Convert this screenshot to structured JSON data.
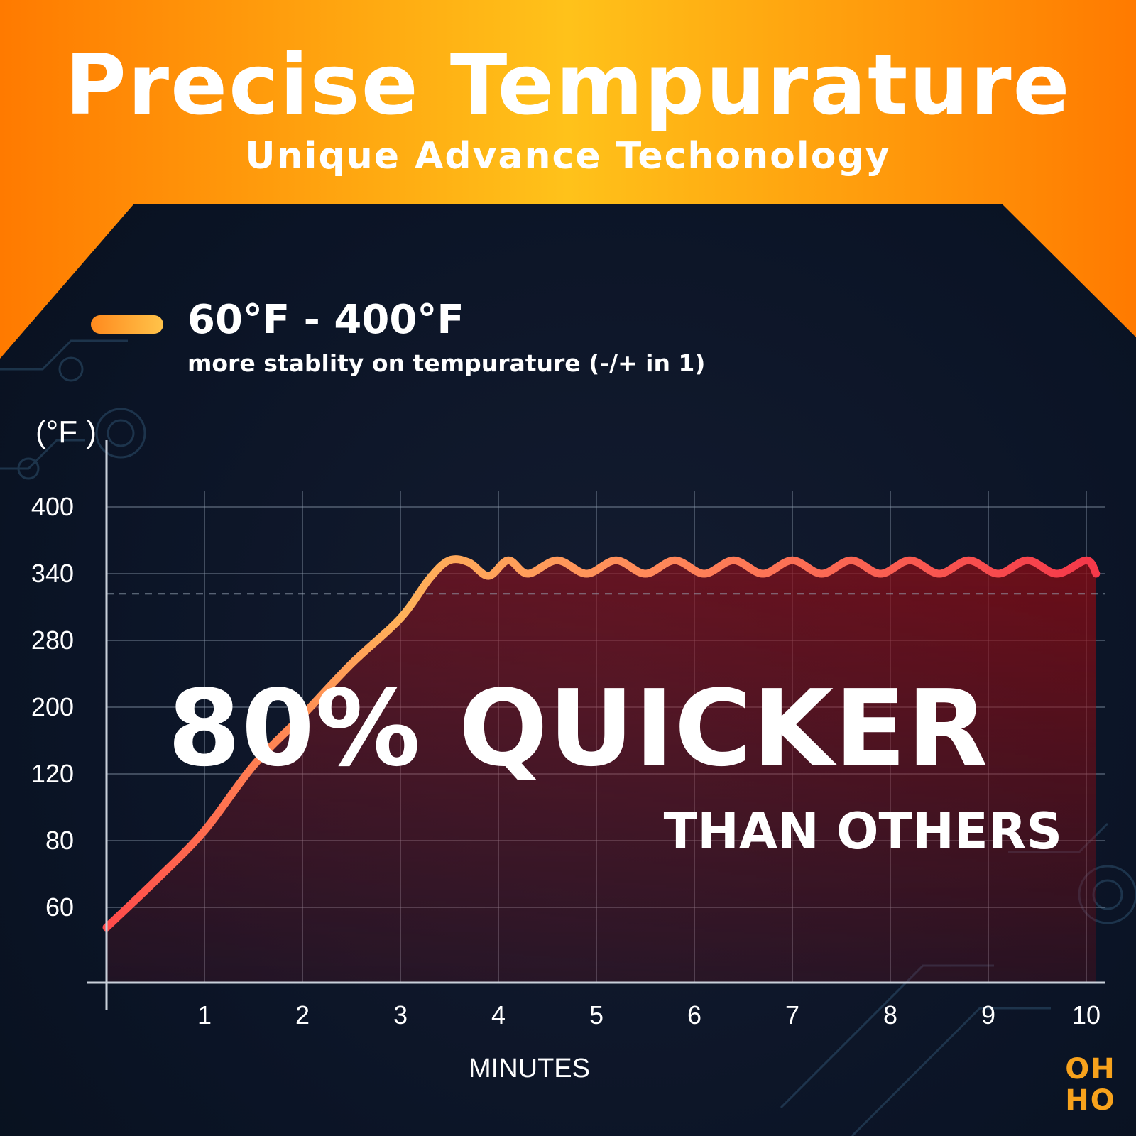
{
  "banner": {
    "title": "Precise Tempurature",
    "subtitle": "Unique Advance Techonology"
  },
  "legend": {
    "range_text": "60°F - 400°F",
    "note": "more stablity on tempurature (-/+ in 1)",
    "swatch_colors": [
      "#ff8a1e",
      "#ffc34a"
    ]
  },
  "headline": {
    "main": "80% QUICKER",
    "sub": "THAN OTHERS"
  },
  "brand": {
    "line1": "OH",
    "line2": "HO",
    "color": "#f7a21c"
  },
  "colors": {
    "banner_orange": "#ff7a00",
    "banner_gold": "#ffc21a",
    "background": "#0a1424",
    "curve_start": "#ff4a4a",
    "curve_mid": "#ffb15a",
    "curve_end": "#f5394a",
    "fill": "#8a0c14"
  },
  "chart_data": {
    "type": "line",
    "title": "",
    "xlabel": "MINUTES",
    "ylabel": "(°F )",
    "x_ticks": [
      "1",
      "2",
      "3",
      "4",
      "5",
      "6",
      "7",
      "8",
      "9",
      "10"
    ],
    "y_ticks": [
      "60",
      "80",
      "120",
      "200",
      "280",
      "340",
      "400"
    ],
    "y_tick_values": [
      60,
      80,
      120,
      200,
      280,
      340,
      400
    ],
    "xlim": [
      0,
      10.1
    ],
    "grid": true,
    "reference_line": 322,
    "series": [
      {
        "name": "",
        "x": [
          0,
          0.5,
          1,
          1.5,
          2,
          2.5,
          3,
          3.3,
          3.5,
          3.7,
          3.9,
          4.1,
          4.3,
          4.6,
          4.9,
          5.2,
          5.5,
          5.8,
          6.1,
          6.4,
          6.7,
          7.0,
          7.3,
          7.6,
          7.9,
          8.2,
          8.5,
          8.8,
          9.1,
          9.4,
          9.7,
          10.0,
          10.1
        ],
        "y": [
          54,
          68,
          86,
          130,
          190,
          252,
          300,
          336,
          352,
          350,
          338,
          352,
          340,
          352,
          340,
          352,
          340,
          352,
          340,
          352,
          340,
          352,
          340,
          352,
          340,
          352,
          340,
          352,
          340,
          352,
          340,
          352,
          340
        ]
      }
    ]
  }
}
